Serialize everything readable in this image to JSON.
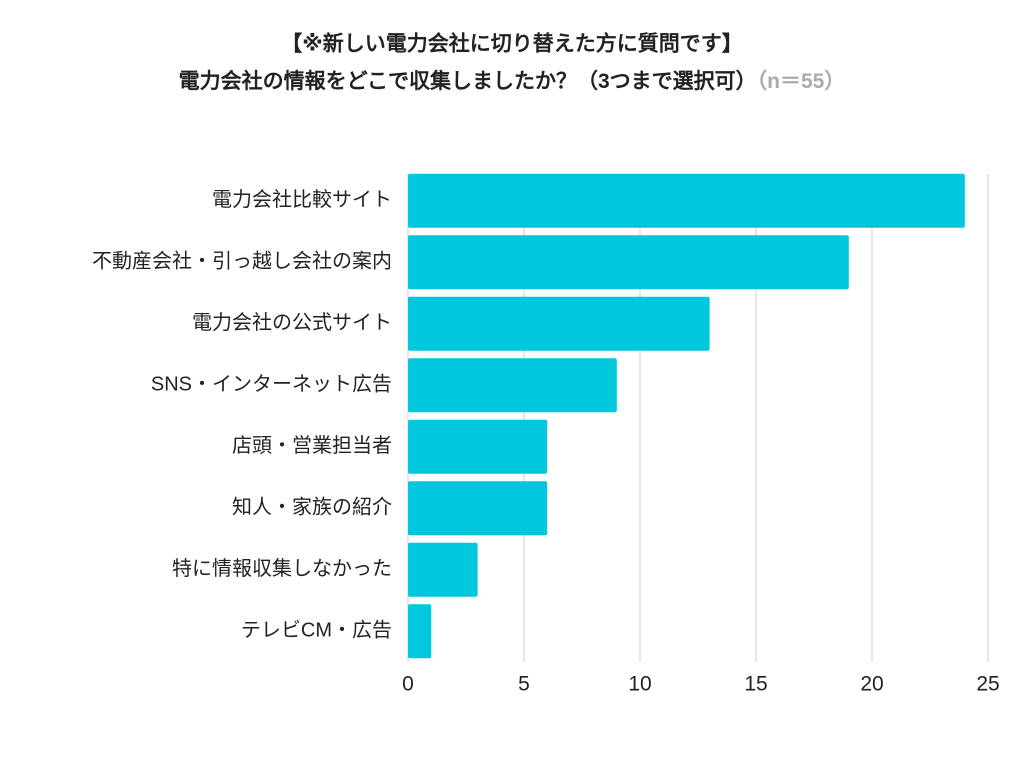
{
  "chart_data": {
    "type": "hbar",
    "title": "【※新しい電力会社に切り替えた方に質問です】",
    "subtitle": "電力会社の情報をどこで収集しましたか？（3つまで選択可）",
    "note": "（n＝55）",
    "categories": [
      "電力会社比較サイト",
      "不動産会社・引っ越し会社の案内",
      "電力会社の公式サイト",
      "SNS・インターネット広告",
      "店頭・営業担当者",
      "知人・家族の紹介",
      "特に情報収集しなかった",
      "テレビCM・広告"
    ],
    "values": [
      24,
      19,
      13,
      9,
      6,
      6,
      3,
      1
    ],
    "color": "#00c8dc",
    "xlim": [
      0,
      25
    ],
    "xticks": [
      0,
      5,
      10,
      15,
      20,
      25
    ],
    "grid": true
  }
}
